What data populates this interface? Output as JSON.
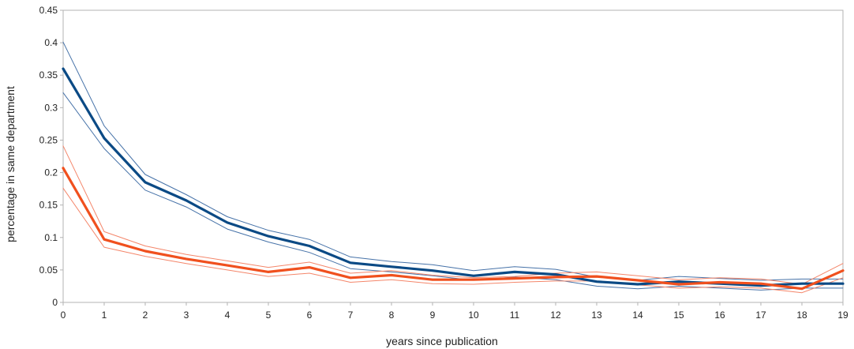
{
  "chart_data": {
    "type": "line",
    "title": "",
    "xlabel": "years since publication",
    "ylabel": "percentage in same department",
    "x": [
      0,
      1,
      2,
      3,
      4,
      5,
      6,
      7,
      8,
      9,
      10,
      11,
      12,
      13,
      14,
      15,
      16,
      17,
      18,
      19
    ],
    "xlim": [
      0,
      19
    ],
    "ylim": [
      0,
      0.45
    ],
    "xticks": [
      "0",
      "1",
      "2",
      "3",
      "4",
      "5",
      "6",
      "7",
      "8",
      "9",
      "10",
      "11",
      "12",
      "13",
      "14",
      "15",
      "16",
      "17",
      "18",
      "19"
    ],
    "yticks": [
      "0",
      "0.05",
      "0.1",
      "0.15",
      "0.2",
      "0.25",
      "0.3",
      "0.35",
      "0.4",
      "0.45"
    ],
    "grid": false,
    "legend": "none",
    "series": [
      {
        "color": "#0b4a85",
        "style": "bold",
        "values": [
          0.36,
          0.253,
          0.185,
          0.157,
          0.123,
          0.102,
          0.087,
          0.061,
          0.055,
          0.049,
          0.041,
          0.047,
          0.043,
          0.032,
          0.028,
          0.032,
          0.029,
          0.026,
          0.029,
          0.029
        ]
      },
      {
        "color": "#4672a8",
        "style": "thin",
        "values": [
          0.401,
          0.272,
          0.197,
          0.166,
          0.132,
          0.111,
          0.097,
          0.07,
          0.063,
          0.058,
          0.049,
          0.055,
          0.051,
          0.039,
          0.034,
          0.04,
          0.037,
          0.034,
          0.036,
          0.036
        ]
      },
      {
        "color": "#4672a8",
        "style": "thin",
        "values": [
          0.323,
          0.237,
          0.173,
          0.147,
          0.113,
          0.093,
          0.077,
          0.052,
          0.047,
          0.041,
          0.034,
          0.039,
          0.035,
          0.025,
          0.021,
          0.025,
          0.022,
          0.019,
          0.022,
          0.022
        ]
      },
      {
        "color": "#f0501e",
        "style": "bold",
        "values": [
          0.207,
          0.097,
          0.079,
          0.067,
          0.057,
          0.047,
          0.054,
          0.038,
          0.042,
          0.035,
          0.035,
          0.037,
          0.039,
          0.04,
          0.034,
          0.028,
          0.031,
          0.029,
          0.021,
          0.049
        ]
      },
      {
        "color": "#f4866a",
        "style": "thin",
        "values": [
          0.241,
          0.109,
          0.087,
          0.074,
          0.064,
          0.054,
          0.062,
          0.045,
          0.049,
          0.042,
          0.038,
          0.04,
          0.045,
          0.047,
          0.041,
          0.035,
          0.038,
          0.036,
          0.028,
          0.06
        ]
      },
      {
        "color": "#f4866a",
        "style": "thin",
        "values": [
          0.176,
          0.085,
          0.071,
          0.06,
          0.05,
          0.04,
          0.045,
          0.031,
          0.035,
          0.029,
          0.028,
          0.031,
          0.033,
          0.033,
          0.027,
          0.022,
          0.024,
          0.022,
          0.015,
          0.038
        ]
      }
    ]
  }
}
